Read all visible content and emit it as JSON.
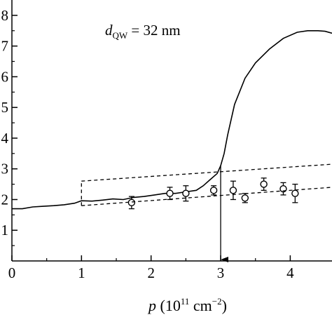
{
  "chart_data": {
    "type": "line",
    "xlim": [
      0,
      4.6
    ],
    "ylim": [
      0,
      8.5
    ],
    "x_ticks": [
      0,
      1,
      2,
      3,
      4
    ],
    "y_ticks": [
      1,
      2,
      3,
      4,
      5,
      6,
      7,
      8
    ],
    "x_tick_labels": [
      "0",
      "1",
      "2",
      "3",
      "4"
    ],
    "y_tick_labels": [
      "1",
      "2",
      "3",
      "4",
      "5",
      "6",
      "7",
      "8"
    ],
    "xlabel": {
      "var": "p",
      "open": " (10",
      "exp1": "11",
      "unit": " cm",
      "exp2": "−2",
      "close": ")"
    },
    "ylabel": "",
    "title": "",
    "annotation": {
      "var": "d",
      "sub": "QW",
      "rest": " = 32 nm"
    },
    "grid": false,
    "legend": "none",
    "series": [
      {
        "style": "solid-line",
        "x": [
          0.0,
          0.15,
          0.3,
          0.45,
          0.6,
          0.75,
          0.9,
          1.0,
          1.15,
          1.3,
          1.45,
          1.6,
          1.75,
          1.9,
          2.05,
          2.2,
          2.35,
          2.5,
          2.65,
          2.75,
          2.85,
          2.95,
          3.0,
          3.05,
          3.1,
          3.2,
          3.35,
          3.5,
          3.7,
          3.9,
          4.1,
          4.25,
          4.4,
          4.5,
          4.6
        ],
        "y": [
          1.7,
          1.7,
          1.76,
          1.78,
          1.8,
          1.83,
          1.88,
          1.96,
          1.95,
          1.98,
          2.02,
          2.0,
          2.07,
          2.1,
          2.15,
          2.2,
          2.2,
          2.25,
          2.3,
          2.45,
          2.65,
          2.85,
          3.1,
          3.5,
          4.1,
          5.1,
          5.95,
          6.45,
          6.9,
          7.25,
          7.45,
          7.5,
          7.5,
          7.48,
          7.42
        ]
      },
      {
        "style": "open-circles-with-error-bars",
        "x": [
          1.72,
          2.27,
          2.5,
          2.9,
          3.18,
          3.35,
          3.62,
          3.9,
          4.07
        ],
        "y": [
          1.9,
          2.2,
          2.2,
          2.3,
          2.3,
          2.05,
          2.5,
          2.35,
          2.2
        ],
        "err": [
          0.2,
          0.2,
          0.25,
          0.15,
          0.3,
          0.15,
          0.2,
          0.2,
          0.3
        ]
      },
      {
        "style": "dashed-line",
        "x": [
          1.0,
          4.6
        ],
        "y": [
          2.6,
          3.15
        ]
      },
      {
        "style": "dashed-line",
        "x": [
          1.0,
          4.6
        ],
        "y": [
          1.8,
          2.4
        ]
      },
      {
        "style": "dashed-line",
        "x": [
          1.0,
          1.0
        ],
        "y": [
          1.8,
          2.6
        ]
      }
    ],
    "marker_arrow": {
      "x": 3.0,
      "y_from": 3.1,
      "y_to": 0.0
    }
  }
}
